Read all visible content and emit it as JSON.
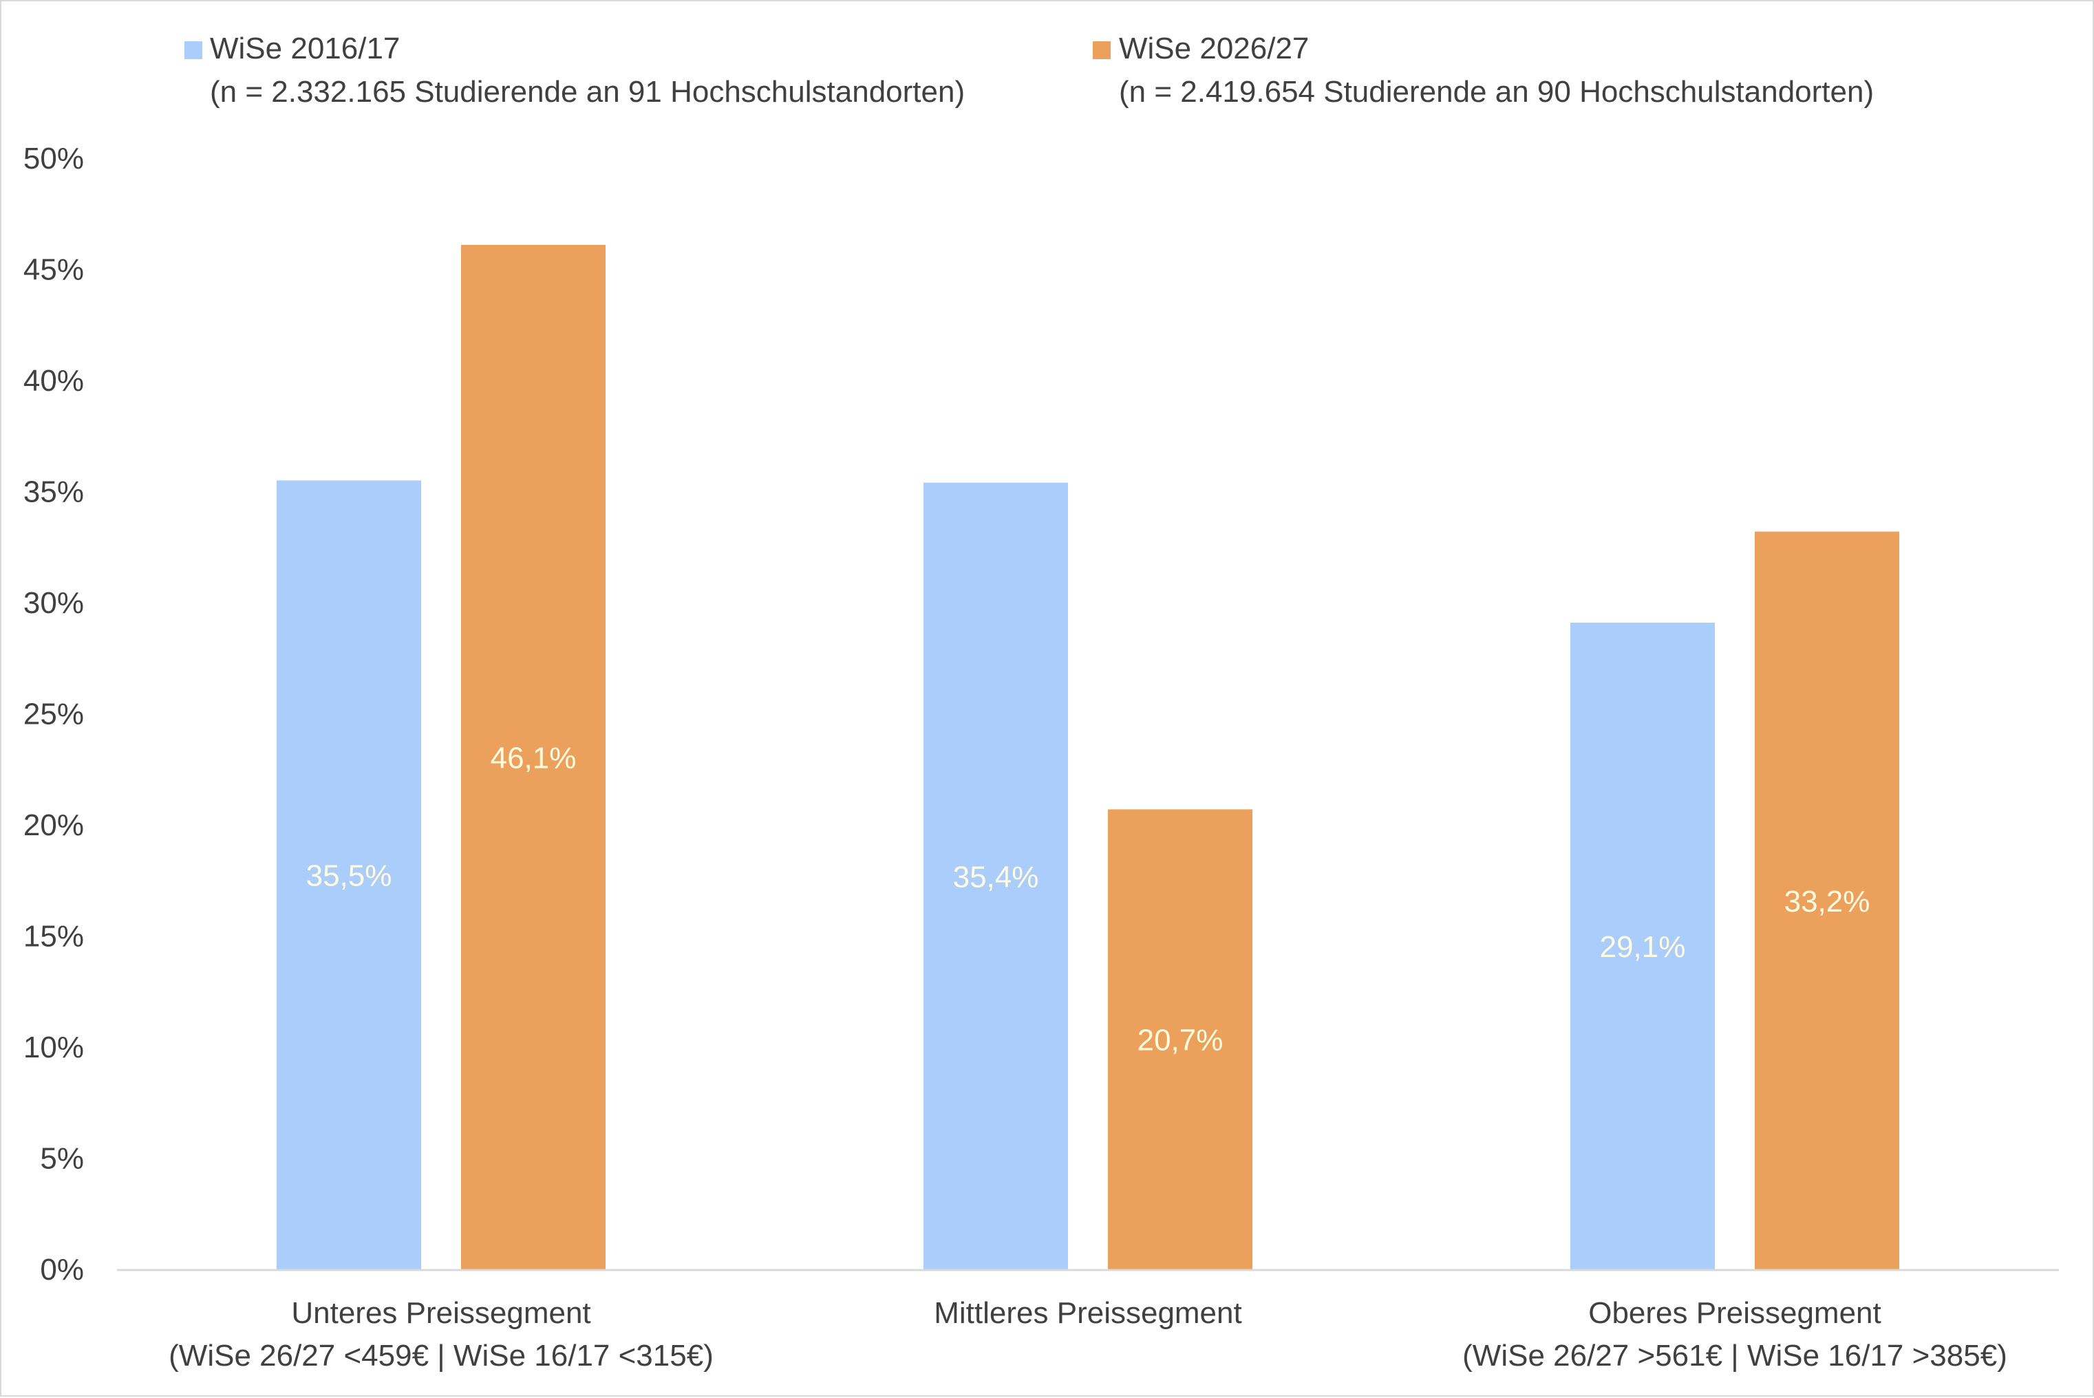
{
  "chart_data": {
    "type": "bar",
    "categories": [
      {
        "line1": "Unteres Preissegment",
        "line2": "(WiSe 26/27 <459€ | WiSe 16/17 <315€)"
      },
      {
        "line1": "Mittleres Preissegment",
        "line2": ""
      },
      {
        "line1": "Oberes Preissegment",
        "line2": "(WiSe 26/27 >561€ | WiSe 16/17 >385€)"
      }
    ],
    "series": [
      {
        "name": "WiSe 2016/17",
        "note": "(n = 2.332.165 Studierende an 91 Hochschulstandorten)",
        "color": "#aacdfb",
        "values": [
          35.5,
          35.4,
          29.1
        ],
        "labels": [
          "35,5%",
          "35,4%",
          "29,1%"
        ]
      },
      {
        "name": "WiSe 2026/27",
        "note": "(n = 2.419.654 Studierende an 90 Hochschulstandorten)",
        "color": "#eba05c",
        "values": [
          46.1,
          20.7,
          33.2
        ],
        "labels": [
          "46,1%",
          "20,7%",
          "33,2%"
        ]
      }
    ],
    "ylim": [
      0,
      50
    ],
    "yticks": [
      0,
      5,
      10,
      15,
      20,
      25,
      30,
      35,
      40,
      45,
      50
    ],
    "ytick_labels": [
      "0%",
      "5%",
      "10%",
      "15%",
      "20%",
      "25%",
      "30%",
      "35%",
      "40%",
      "45%",
      "50%"
    ],
    "grid": false,
    "legend_position": "top",
    "data_label_color": "#fffbe0",
    "axis_color": "#d9d9d9",
    "text_color": "#404040"
  }
}
